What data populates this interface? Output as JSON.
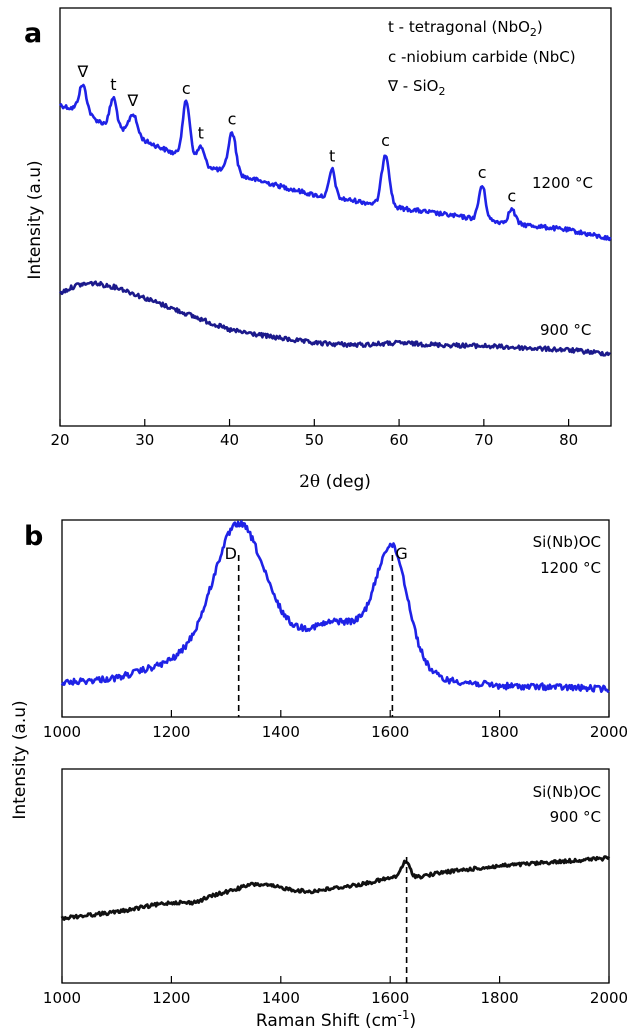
{
  "panel_letters": [
    "a",
    "b"
  ],
  "chart_data": [
    {
      "type": "line",
      "id": "xrd",
      "xlabel_parts": [
        "2θ",
        " (deg)"
      ],
      "ylabel": "Intensity (a.u)",
      "xlim": [
        20,
        85
      ],
      "xticks": [
        "20",
        "30",
        "40",
        "50",
        "60",
        "70",
        "80"
      ],
      "legend_lines": [
        {
          "pre": "t - tetragonal (NbO",
          "sub": "2",
          "post": ")"
        },
        {
          "pre": "c -niobium carbide (NbC)",
          "sub": "",
          "post": ""
        },
        {
          "pre": "∇ - SiO",
          "sub": "2",
          "post": ""
        }
      ],
      "series": [
        {
          "name": "1200 °C",
          "color": "#1f22e6",
          "baseline": [
            [
              20,
              105
            ],
            [
              22,
              110
            ],
            [
              25,
              123
            ],
            [
              28,
              134
            ],
            [
              32,
              148
            ],
            [
              36,
              163
            ],
            [
              40,
              173
            ],
            [
              45,
              184
            ],
            [
              50,
              195
            ],
            [
              55,
              201
            ],
            [
              60,
              208
            ],
            [
              65,
              214
            ],
            [
              70,
              220
            ],
            [
              75,
              225
            ],
            [
              80,
              230
            ],
            [
              85,
              239
            ]
          ],
          "peaks": [
            [
              22.7,
              28,
              0.45
            ],
            [
              26.3,
              30,
              0.4
            ],
            [
              28.6,
              22,
              0.5
            ],
            [
              34.9,
              57,
              0.45
            ],
            [
              36.6,
              18,
              0.4
            ],
            [
              40.3,
              41,
              0.45
            ],
            [
              52.1,
              28,
              0.35
            ],
            [
              58.4,
              52,
              0.45
            ],
            [
              69.8,
              34,
              0.4
            ],
            [
              73.3,
              14,
              0.4
            ]
          ]
        },
        {
          "name": "900 °C",
          "color": "#1c1a8c",
          "baseline": [
            [
              20,
              293
            ],
            [
              22,
              285
            ],
            [
              24,
              283
            ],
            [
              27,
              288
            ],
            [
              30,
              298
            ],
            [
              35,
              314
            ],
            [
              40,
              330
            ],
            [
              45,
              337
            ],
            [
              50,
              343
            ],
            [
              55,
              345
            ],
            [
              60,
              343
            ],
            [
              65,
              345
            ],
            [
              70,
              346
            ],
            [
              75,
              348
            ],
            [
              80,
              350
            ],
            [
              85,
              354
            ]
          ],
          "peaks": []
        }
      ],
      "peak_labels": [
        {
          "text": "∇",
          "x": 22.7
        },
        {
          "text": "t",
          "x": 26.3
        },
        {
          "text": "∇",
          "x": 28.6
        },
        {
          "text": "c",
          "x": 34.9
        },
        {
          "text": "t",
          "x": 36.6
        },
        {
          "text": "c",
          "x": 40.3
        },
        {
          "text": "t",
          "x": 52.1
        },
        {
          "text": "c",
          "x": 58.4
        },
        {
          "text": "c",
          "x": 69.8
        },
        {
          "text": "c",
          "x": 73.3
        }
      ]
    },
    {
      "type": "line",
      "id": "raman-1200",
      "xlabel": "",
      "xlim": [
        1000,
        2000
      ],
      "xticks": [
        "1000",
        "1200",
        "1400",
        "1600",
        "1800",
        "2000"
      ],
      "annotation": [
        "Si(Nb)OC",
        "1200 °C"
      ],
      "markers": [
        {
          "label": "D",
          "x": 1323
        },
        {
          "label": "G",
          "x": 1604
        }
      ],
      "series": [
        {
          "name": "Si(Nb)OC 1200 °C",
          "color": "#1f22e6",
          "baseline": [
            [
              1000,
              683
            ],
            [
              1100,
              678
            ],
            [
              1200,
              662
            ],
            [
              1300,
              645
            ],
            [
              1400,
              640
            ],
            [
              1500,
              645
            ],
            [
              1600,
              658
            ],
            [
              1700,
              680
            ],
            [
              1800,
              686
            ],
            [
              1900,
              687
            ],
            [
              2000,
              689
            ]
          ],
          "peaks": [
            [
              1323,
              120,
              45
            ],
            [
              1604,
              104,
              28
            ],
            [
              1520,
              25,
              60
            ]
          ]
        }
      ]
    },
    {
      "type": "line",
      "id": "raman-900",
      "xlabel_parts": [
        "Raman Shift (cm",
        "-1",
        ")"
      ],
      "ylabel": "Intensity (a.u)",
      "xlim": [
        1000,
        2000
      ],
      "xticks": [
        "1000",
        "1200",
        "1400",
        "1600",
        "1800",
        "2000"
      ],
      "annotation": [
        "Si(Nb)OC",
        "900 °C"
      ],
      "markers": [
        {
          "label": "",
          "x": 1630
        }
      ],
      "series": [
        {
          "name": "Si(Nb)OC 900 °C",
          "color": "#111111",
          "baseline": [
            [
              1000,
              918
            ],
            [
              1100,
              912
            ],
            [
              1200,
              902
            ],
            [
              1300,
              893
            ],
            [
              1350,
              887
            ],
            [
              1450,
              892
            ],
            [
              1550,
              884
            ],
            [
              1600,
              878
            ],
            [
              1640,
              878
            ],
            [
              1700,
              872
            ],
            [
              1800,
              866
            ],
            [
              1900,
              862
            ],
            [
              2000,
              858
            ]
          ],
          "peaks": [
            [
              1628,
              16,
              8
            ],
            [
              1240,
              -4,
              20
            ],
            [
              1360,
              3,
              40
            ]
          ]
        }
      ]
    }
  ]
}
